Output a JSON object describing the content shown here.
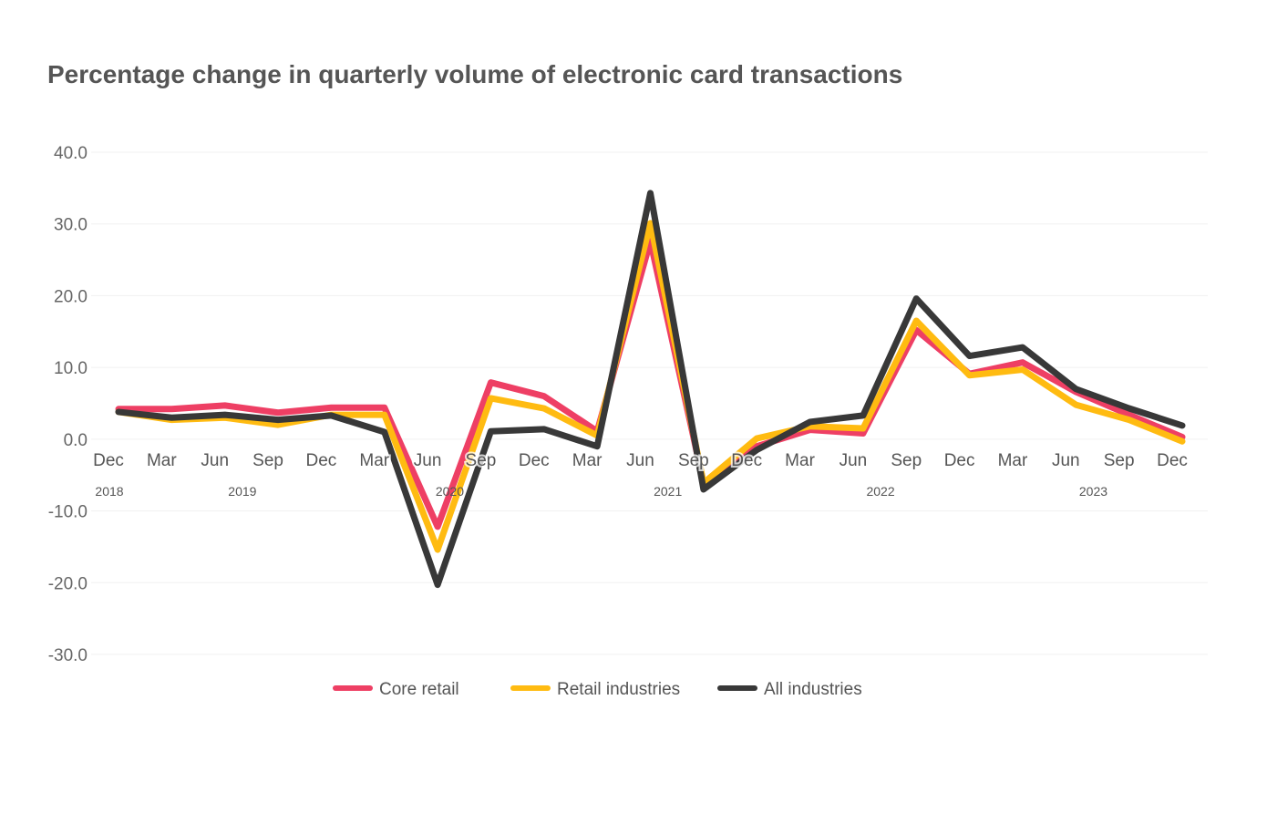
{
  "chart_data": {
    "type": "line",
    "title": "Percentage change in quarterly volume of electronic card transactions",
    "x": [
      "Dec",
      "Mar",
      "Jun",
      "Sep",
      "Dec",
      "Mar",
      "Jun",
      "Sep",
      "Dec",
      "Mar",
      "Jun",
      "Sep",
      "Dec",
      "Mar",
      "Jun",
      "Sep",
      "Dec",
      "Mar",
      "Jun",
      "Sep",
      "Dec"
    ],
    "years": [
      {
        "label": "2018",
        "index": 0
      },
      {
        "label": "2019",
        "index": 2.5
      },
      {
        "label": "2020",
        "index": 6.4
      },
      {
        "label": "2021",
        "index": 10.5
      },
      {
        "label": "2022",
        "index": 14.5
      },
      {
        "label": "2023",
        "index": 18.5
      }
    ],
    "ylim": [
      -30,
      40
    ],
    "yticks": [
      "40.0",
      "30.0",
      "20.0",
      "10.0",
      "0.0",
      "-10.0",
      "-20.0",
      "-30.0"
    ],
    "ytick_values": [
      40,
      30,
      20,
      10,
      0,
      -10,
      -20,
      -30
    ],
    "grid": true,
    "legend_placement": "bottom",
    "series": [
      {
        "name": "Core retail",
        "color": "#ee3f64",
        "values": [
          4.2,
          4.2,
          4.7,
          3.7,
          4.4,
          4.4,
          -12.2,
          7.9,
          6.0,
          1.1,
          27.6,
          -6.1,
          -1.0,
          1.3,
          0.8,
          15.2,
          9.1,
          10.7,
          6.6,
          3.4,
          0.3
        ]
      },
      {
        "name": "Retail industries",
        "color": "#ffbb11",
        "values": [
          3.8,
          2.7,
          3.0,
          2.0,
          3.4,
          3.4,
          -15.4,
          5.7,
          4.3,
          0.5,
          30.1,
          -6.1,
          0.1,
          1.8,
          1.5,
          16.5,
          8.9,
          9.7,
          4.8,
          2.7,
          -0.3
        ]
      },
      {
        "name": "All industries",
        "color": "#383838",
        "values": [
          3.8,
          3.0,
          3.4,
          2.7,
          3.3,
          1.0,
          -20.3,
          1.1,
          1.4,
          -1.0,
          34.3,
          -7.0,
          -1.5,
          2.4,
          3.3,
          19.6,
          11.6,
          12.8,
          7.0,
          4.3,
          1.9
        ]
      }
    ]
  }
}
